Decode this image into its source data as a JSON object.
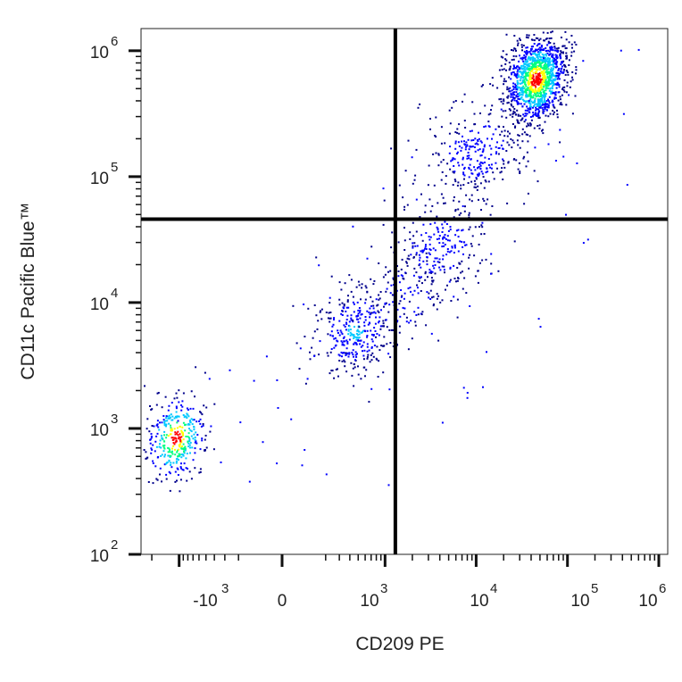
{
  "chart_data": {
    "type": "scatter",
    "subtype": "flow-cytometry-density-dot-plot",
    "xlabel": "CD209 PE",
    "ylabel": "CD11c Pacific Blue™",
    "x_scale": "biexponential",
    "y_scale": "log",
    "xlim": [
      -3000,
      1100000
    ],
    "ylim": [
      100,
      1500000
    ],
    "x_ticks": [
      {
        "value": -1000,
        "base": "-10",
        "exp": "3"
      },
      {
        "value": 0,
        "base": "0",
        "exp": ""
      },
      {
        "value": 1000,
        "base": "10",
        "exp": "3"
      },
      {
        "value": 10000,
        "base": "10",
        "exp": "4"
      },
      {
        "value": 100000,
        "base": "10",
        "exp": "5"
      },
      {
        "value": 1000000,
        "base": "10",
        "exp": "6"
      }
    ],
    "y_ticks": [
      {
        "value": 100,
        "base": "10",
        "exp": "2"
      },
      {
        "value": 1000,
        "base": "10",
        "exp": "3"
      },
      {
        "value": 10000,
        "base": "10",
        "exp": "4"
      },
      {
        "value": 100000,
        "base": "10",
        "exp": "5"
      },
      {
        "value": 1000000,
        "base": "10",
        "exp": "6"
      }
    ],
    "quadrant_gate": {
      "x": 1300,
      "y": 46000
    },
    "populations": [
      {
        "x_center": -1100,
        "y_center": 850,
        "count": 360,
        "peak_density": "high"
      },
      {
        "x_center": 450,
        "y_center": 6000,
        "count": 330,
        "peak_density": "medium"
      },
      {
        "x_center": 1500,
        "y_center": 11000,
        "count": 120,
        "peak_density": "low"
      },
      {
        "x_center": 3800,
        "y_center": 28000,
        "count": 240,
        "peak_density": "low"
      },
      {
        "x_center": 10000,
        "y_center": 160000,
        "count": 300,
        "peak_density": "low"
      },
      {
        "x_center": 45000,
        "y_center": 600000,
        "count": 1250,
        "peak_density": "high"
      }
    ],
    "density_colors": [
      "#00008b",
      "#0000ff",
      "#00c8ff",
      "#00ff7f",
      "#ffff00",
      "#ff0000"
    ],
    "grid": false,
    "legend": "none"
  }
}
